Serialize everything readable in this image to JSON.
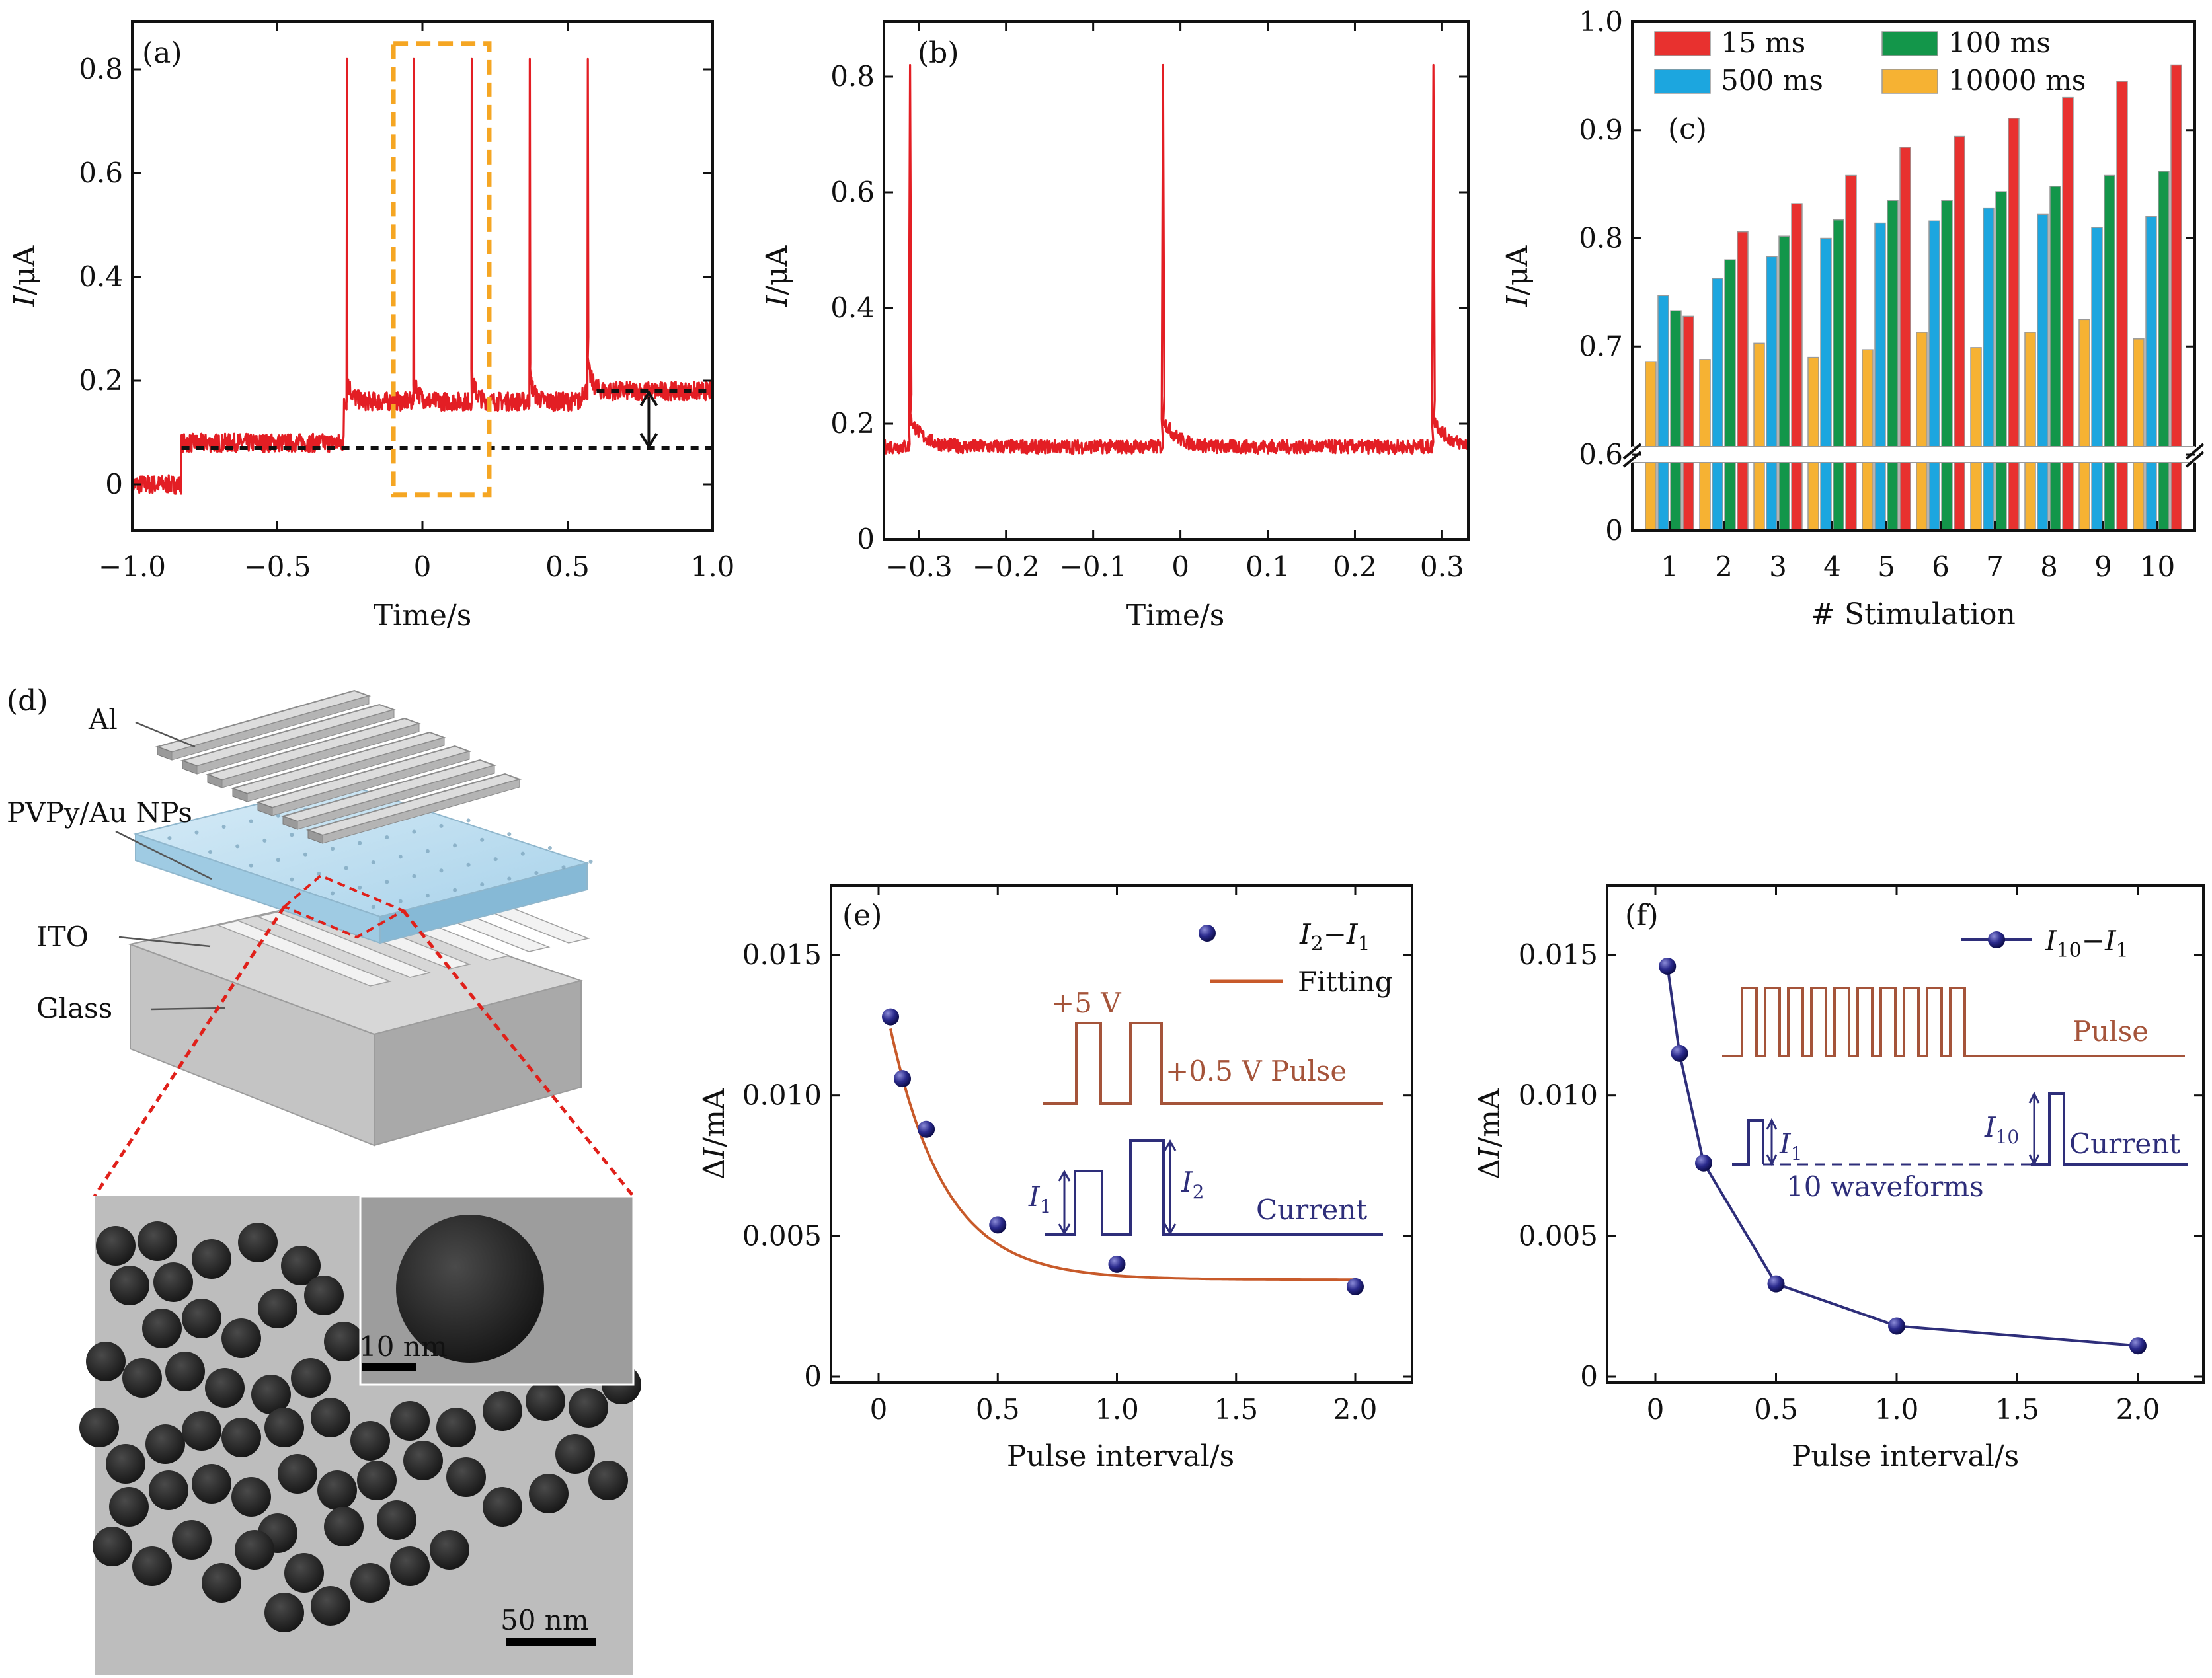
{
  "figure": {
    "panels": {
      "a": {
        "label": "(a)",
        "xlabel": "Time/s",
        "ylabel_i": "I",
        "ylabel_unit": "/μA",
        "xticks": [
          "−1.0",
          "−0.5",
          "0",
          "0.5",
          "1.0"
        ],
        "yticks": [
          "0",
          "0.2",
          "0.4",
          "0.6",
          "0.8"
        ]
      },
      "b": {
        "label": "(b)",
        "xlabel": "Time/s",
        "ylabel_i": "I",
        "ylabel_unit": "/μA",
        "xticks": [
          "−0.3",
          "−0.2",
          "−0.1",
          "0",
          "0.1",
          "0.2",
          "0.3"
        ],
        "yticks": [
          "0",
          "0.2",
          "0.4",
          "0.6",
          "0.8"
        ]
      },
      "c": {
        "label": "(c)",
        "xlabel": "# Stimulation",
        "ylabel_i": "I",
        "ylabel_unit": "/μA",
        "xticks": [
          "1",
          "2",
          "3",
          "4",
          "5",
          "6",
          "7",
          "8",
          "9",
          "10"
        ],
        "yticks": [
          "0",
          "0.6",
          "0.7",
          "0.8",
          "0.9",
          "1.0"
        ]
      },
      "d": {
        "label": "(d)",
        "layer_al": "Al",
        "layer_pvpy": "PVPy/Au NPs",
        "layer_ito": "ITO",
        "layer_glass": "Glass",
        "scale_inset": "10 nm",
        "scale_main": "50 nm"
      },
      "e": {
        "label": "(e)",
        "xlabel": "Pulse interval/s",
        "ylabel_prefix": "Δ",
        "ylabel_i": "I",
        "ylabel_unit": "/mA",
        "xticks": [
          "0",
          "0.5",
          "1.0",
          "1.5",
          "2.0"
        ],
        "yticks": [
          "0",
          "0.005",
          "0.010",
          "0.015"
        ],
        "legend_data_main": "I",
        "legend_data_sub1": "2",
        "legend_data_minus": "−I",
        "legend_data_sub2": "1",
        "legend_fit": "Fitting",
        "ann_v1": "+5 V",
        "ann_v2": "+0.5 V  Pulse",
        "ann_current": "Current",
        "ann_i1": "I",
        "ann_i1_sub": "1",
        "ann_i2": "I",
        "ann_i2_sub": "2"
      },
      "f": {
        "label": "(f)",
        "xlabel": "Pulse interval/s",
        "ylabel_prefix": "Δ",
        "ylabel_i": "I",
        "ylabel_unit": "/mA",
        "xticks": [
          "0",
          "0.5",
          "1.0",
          "1.5",
          "2.0"
        ],
        "yticks": [
          "0",
          "0.005",
          "0.010",
          "0.015"
        ],
        "legend_main": "I",
        "legend_sub1": "10",
        "legend_minus": "−I",
        "legend_sub2": "1",
        "ann_pulse": "Pulse",
        "ann_current": "Current",
        "ann_waveforms": "10 waveforms",
        "ann_i1": "I",
        "ann_i1_sub": "1",
        "ann_i10": "I",
        "ann_i10_sub": "10"
      }
    },
    "colors": {
      "trace_red": "#e31e24",
      "dash": "#111111",
      "box_orange": "#f5a623",
      "red": "#e8312f",
      "blue": "#1ca6df",
      "green": "#13964a",
      "orange": "#f6b233",
      "fit_line": "#c85a2a",
      "marker": "#1c1c78",
      "pulse": "#a5543a",
      "current": "#2e2e7a"
    }
  },
  "chart_data": [
    {
      "id": "a",
      "type": "line",
      "title": "",
      "xlabel": "Time/s",
      "ylabel": "I/μA",
      "xlim": [
        -1.0,
        1.0
      ],
      "ylim": [
        -0.08,
        0.9
      ],
      "series": [
        {
          "name": "current",
          "baseline_segments": [
            {
              "x": [
                -1.0,
                -0.83
              ],
              "y": 0.0
            },
            {
              "x": [
                -0.83,
                -0.27
              ],
              "y": 0.08
            },
            {
              "x": [
                -0.27,
                0.55
              ],
              "y": 0.16
            },
            {
              "x": [
                0.55,
                1.0
              ],
              "y": 0.18
            }
          ],
          "spikes": [
            {
              "x": -0.26,
              "y": 0.82
            },
            {
              "x": -0.03,
              "y": 0.82
            },
            {
              "x": 0.17,
              "y": 0.82
            },
            {
              "x": 0.37,
              "y": 0.82
            },
            {
              "x": 0.57,
              "y": 0.82
            }
          ],
          "noise": 0.018
        }
      ],
      "dashed_levels": [
        {
          "y": 0.07,
          "x": [
            -0.83,
            1.0
          ]
        },
        {
          "y": 0.18,
          "x": [
            0.6,
            1.0
          ]
        }
      ],
      "highlight_box": {
        "x": [
          -0.1,
          0.23
        ],
        "y": [
          -0.02,
          0.85
        ]
      },
      "arrow": {
        "x": 0.78,
        "y": [
          0.07,
          0.18
        ]
      }
    },
    {
      "id": "b",
      "type": "line",
      "title": "",
      "xlabel": "Time/s",
      "ylabel": "I/μA",
      "xlim": [
        -0.34,
        0.33
      ],
      "ylim": [
        0,
        0.9
      ],
      "series": [
        {
          "name": "current",
          "baseline_segments": [
            {
              "x": [
                -0.34,
                0.33
              ],
              "y": 0.16
            }
          ],
          "spikes": [
            {
              "x": -0.31,
              "y": 0.82
            },
            {
              "x": -0.02,
              "y": 0.82
            },
            {
              "x": 0.29,
              "y": 0.82
            }
          ],
          "noise": 0.012
        }
      ]
    },
    {
      "id": "c",
      "type": "bar",
      "title": "",
      "xlabel": "# Stimulation",
      "ylabel": "I/μA",
      "categories": [
        "1",
        "2",
        "3",
        "4",
        "5",
        "6",
        "7",
        "8",
        "9",
        "10"
      ],
      "ylim": [
        0.6,
        1.0
      ],
      "axis_break": 0.6,
      "series": [
        {
          "name": "10000 ms",
          "values": [
            0.686,
            0.688,
            0.703,
            0.69,
            0.697,
            0.713,
            0.699,
            0.713,
            0.725,
            0.707
          ]
        },
        {
          "name": "500 ms",
          "values": [
            0.747,
            0.763,
            0.783,
            0.8,
            0.814,
            0.816,
            0.828,
            0.822,
            0.81,
            0.82
          ]
        },
        {
          "name": "100 ms",
          "values": [
            0.733,
            0.78,
            0.802,
            0.817,
            0.835,
            0.835,
            0.843,
            0.848,
            0.858,
            0.862
          ]
        },
        {
          "name": "15 ms",
          "values": [
            0.728,
            0.806,
            0.832,
            0.858,
            0.884,
            0.894,
            0.911,
            0.93,
            0.945,
            0.96
          ]
        }
      ],
      "legend": [
        "15 ms",
        "100 ms",
        "500 ms",
        "10000 ms"
      ]
    },
    {
      "id": "e",
      "type": "scatter",
      "title": "",
      "xlabel": "Pulse interval/s",
      "ylabel": "ΔI/mA",
      "xlim": [
        -0.15,
        2.15
      ],
      "ylim": [
        0,
        0.017
      ],
      "series": [
        {
          "name": "I2−I1",
          "x": [
            0.05,
            0.1,
            0.2,
            0.5,
            1.0,
            2.0
          ],
          "y": [
            0.0128,
            0.0106,
            0.0088,
            0.0054,
            0.004,
            0.0032
          ]
        },
        {
          "name": "Fitting",
          "fit": {
            "form": "y0 + A*exp(-x/t)",
            "y0": 0.00345,
            "A": 0.0111,
            "t": 0.23
          }
        }
      ]
    },
    {
      "id": "f",
      "type": "line",
      "title": "",
      "xlabel": "Pulse interval/s",
      "ylabel": "ΔI/mA",
      "xlim": [
        -0.15,
        2.15
      ],
      "ylim": [
        0,
        0.017
      ],
      "series": [
        {
          "name": "I10−I1",
          "x": [
            0.05,
            0.1,
            0.2,
            0.5,
            1.0,
            2.0
          ],
          "y": [
            0.0146,
            0.0115,
            0.0076,
            0.0033,
            0.0018,
            0.0011
          ]
        }
      ]
    }
  ]
}
